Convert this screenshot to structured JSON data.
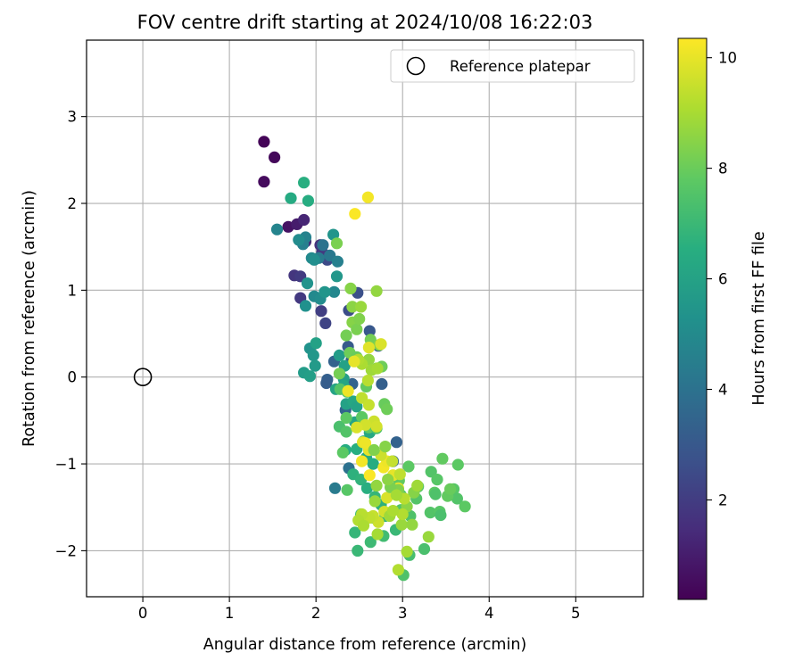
{
  "chart_data": {
    "type": "scatter",
    "title": "FOV centre drift starting at 2024/10/08 16:22:03",
    "xlabel": "Angular distance from reference (arcmin)",
    "ylabel": "Rotation from reference (arcmin)",
    "xlim": [
      -0.65,
      5.78
    ],
    "ylim": [
      -2.53,
      3.88
    ],
    "xticks": [
      0,
      1,
      2,
      3,
      4,
      5
    ],
    "yticks": [
      -2,
      -1,
      0,
      1,
      2,
      3
    ],
    "grid": true,
    "legend": {
      "position": "top-right",
      "entries": [
        "Reference platepar"
      ]
    },
    "reference": {
      "x": 0,
      "y": 0
    },
    "colorbar": {
      "label": "Hours from first FF file",
      "range": [
        0.2,
        10.35
      ],
      "ticks": [
        2,
        4,
        6,
        8,
        10
      ],
      "colormap": "viridis"
    },
    "series": [
      {
        "points": [
          [
            1.4,
            2.71,
            0.3
          ],
          [
            1.52,
            2.53,
            0.4
          ],
          [
            1.4,
            2.25,
            0.5
          ],
          [
            1.68,
            1.73,
            0.7
          ],
          [
            1.78,
            1.76,
            1.0
          ],
          [
            1.86,
            1.81,
            1.3
          ],
          [
            1.88,
            1.56,
            1.5
          ],
          [
            2.05,
            1.52,
            1.7
          ],
          [
            2.07,
            1.44,
            1.9
          ],
          [
            1.75,
            1.17,
            1.8
          ],
          [
            1.82,
            1.16,
            2.0
          ],
          [
            1.82,
            0.91,
            1.9
          ],
          [
            2.06,
            0.76,
            2.1
          ],
          [
            2.11,
            0.62,
            2.3
          ],
          [
            2.13,
            1.35,
            2.5
          ],
          [
            2.48,
            0.97,
            2.7
          ],
          [
            2.38,
            0.77,
            2.6
          ],
          [
            2.62,
            0.53,
            3.0
          ],
          [
            2.37,
            0.35,
            3.1
          ],
          [
            2.72,
            0.36,
            3.2
          ],
          [
            2.41,
            0.2,
            3.3
          ],
          [
            2.21,
            0.18,
            3.4
          ],
          [
            2.13,
            -0.03,
            3.3
          ],
          [
            2.12,
            -0.07,
            3.2
          ],
          [
            2.42,
            -0.08,
            3.4
          ],
          [
            2.34,
            -0.38,
            3.5
          ],
          [
            2.76,
            -0.08,
            3.3
          ],
          [
            2.53,
            -0.47,
            3.6
          ],
          [
            2.93,
            -0.75,
            3.4
          ],
          [
            2.89,
            -0.97,
            3.6
          ],
          [
            2.38,
            -1.05,
            4.0
          ],
          [
            2.22,
            -1.28,
            4.4
          ],
          [
            2.08,
            1.52,
            4.1
          ],
          [
            2.16,
            1.4,
            4.3
          ],
          [
            2.03,
            1.37,
            4.4
          ],
          [
            2.25,
            1.33,
            4.6
          ],
          [
            1.88,
            1.61,
            4.7
          ],
          [
            1.85,
            1.53,
            4.6
          ],
          [
            1.55,
            1.7,
            4.8
          ],
          [
            1.95,
            1.37,
            5.0
          ],
          [
            1.8,
            1.58,
            5.1
          ],
          [
            1.98,
            1.35,
            5.2
          ],
          [
            2.21,
            0.98,
            4.9
          ],
          [
            1.98,
            0.93,
            5.0
          ],
          [
            2.05,
            0.9,
            5.1
          ],
          [
            1.88,
            0.82,
            5.3
          ],
          [
            1.9,
            1.08,
            5.4
          ],
          [
            2.1,
            0.98,
            5.5
          ],
          [
            2.24,
            1.16,
            5.6
          ],
          [
            2.2,
            1.64,
            5.5
          ],
          [
            1.93,
            0.33,
            5.4
          ],
          [
            1.97,
            0.25,
            5.6
          ],
          [
            1.99,
            0.13,
            5.7
          ],
          [
            1.86,
            0.05,
            5.8
          ],
          [
            1.93,
            0.01,
            5.9
          ],
          [
            2.0,
            0.39,
            6.0
          ],
          [
            2.32,
            -0.02,
            5.9
          ],
          [
            2.27,
            0.25,
            5.8
          ],
          [
            2.33,
            0.13,
            6.0
          ],
          [
            2.23,
            -0.14,
            6.1
          ],
          [
            2.32,
            -0.1,
            6.2
          ],
          [
            2.35,
            -0.31,
            6.0
          ],
          [
            2.43,
            -0.28,
            6.3
          ],
          [
            2.47,
            -0.34,
            6.1
          ],
          [
            2.45,
            -0.52,
            6.2
          ],
          [
            2.55,
            -0.74,
            6.4
          ],
          [
            2.62,
            -0.64,
            6.3
          ],
          [
            2.34,
            -0.84,
            6.5
          ],
          [
            2.47,
            -0.83,
            6.6
          ],
          [
            2.58,
            -0.93,
            6.4
          ],
          [
            2.66,
            -1.0,
            6.5
          ],
          [
            2.43,
            -1.12,
            6.7
          ],
          [
            2.52,
            -1.18,
            6.8
          ],
          [
            2.59,
            -1.28,
            6.6
          ],
          [
            2.68,
            -1.38,
            6.9
          ],
          [
            2.75,
            -1.47,
            6.7
          ],
          [
            2.8,
            -1.6,
            6.8
          ],
          [
            2.92,
            -1.76,
            7.0
          ],
          [
            2.45,
            -1.79,
            6.9
          ],
          [
            2.48,
            -2.0,
            7.0
          ],
          [
            2.63,
            -1.9,
            7.1
          ],
          [
            2.78,
            -1.83,
            7.2
          ],
          [
            2.52,
            -1.58,
            7.1
          ],
          [
            2.66,
            -1.62,
            7.2
          ],
          [
            1.71,
            2.06,
            6.4
          ],
          [
            1.86,
            2.24,
            6.6
          ],
          [
            1.91,
            2.03,
            6.5
          ],
          [
            3.08,
            -2.05,
            7.3
          ],
          [
            3.25,
            -1.98,
            7.4
          ],
          [
            3.01,
            -2.28,
            7.5
          ],
          [
            3.32,
            -1.56,
            7.6
          ],
          [
            3.43,
            -1.55,
            7.7
          ],
          [
            3.37,
            -1.33,
            7.8
          ],
          [
            3.33,
            -1.09,
            7.6
          ],
          [
            3.4,
            -1.18,
            7.7
          ],
          [
            3.46,
            -0.94,
            7.9
          ],
          [
            3.64,
            -1.01,
            7.8
          ],
          [
            3.59,
            -1.29,
            7.7
          ],
          [
            3.63,
            -1.4,
            7.6
          ],
          [
            3.72,
            -1.49,
            7.8
          ],
          [
            3.52,
            -1.37,
            7.9
          ],
          [
            3.55,
            -1.29,
            8.0
          ],
          [
            3.38,
            -1.35,
            7.5
          ],
          [
            3.44,
            -1.59,
            7.4
          ],
          [
            3.09,
            -1.6,
            7.5
          ],
          [
            3.16,
            -1.4,
            7.6
          ],
          [
            3.18,
            -1.26,
            7.7
          ],
          [
            3.07,
            -1.03,
            7.8
          ],
          [
            2.96,
            -1.19,
            7.9
          ],
          [
            2.98,
            -1.36,
            7.5
          ],
          [
            2.98,
            -1.53,
            7.6
          ],
          [
            2.36,
            -1.3,
            7.7
          ],
          [
            2.31,
            -0.87,
            7.8
          ],
          [
            2.27,
            -0.57,
            7.4
          ],
          [
            2.35,
            -0.63,
            7.6
          ],
          [
            2.35,
            -0.47,
            7.8
          ],
          [
            2.61,
            -0.58,
            7.9
          ],
          [
            2.7,
            -0.59,
            7.5
          ],
          [
            2.28,
            -0.14,
            7.6
          ],
          [
            2.36,
            -0.17,
            7.7
          ],
          [
            2.53,
            -0.46,
            7.8
          ],
          [
            2.58,
            -0.11,
            7.9
          ],
          [
            2.79,
            -0.31,
            8.0
          ],
          [
            2.82,
            -0.37,
            8.1
          ],
          [
            2.39,
            0.28,
            8.1
          ],
          [
            2.47,
            0.23,
            8.0
          ],
          [
            2.63,
            0.43,
            8.2
          ],
          [
            2.7,
            0.1,
            8.3
          ],
          [
            2.76,
            0.12,
            8.1
          ],
          [
            2.73,
            0.37,
            8.4
          ],
          [
            2.42,
            0.63,
            8.5
          ],
          [
            2.35,
            0.48,
            8.2
          ],
          [
            2.47,
            0.55,
            8.3
          ],
          [
            2.5,
            0.67,
            8.4
          ],
          [
            2.27,
            0.04,
            8.2
          ],
          [
            2.24,
            1.54,
            8.3
          ],
          [
            2.4,
            1.02,
            8.5
          ],
          [
            2.42,
            0.81,
            8.6
          ],
          [
            2.7,
            0.99,
            8.7
          ],
          [
            2.52,
            0.81,
            8.8
          ],
          [
            2.61,
            0.2,
            8.7
          ],
          [
            2.64,
            0.08,
            8.9
          ],
          [
            2.71,
            0.1,
            9.0
          ],
          [
            2.53,
            0.15,
            9.1
          ],
          [
            2.49,
            0.2,
            9.2
          ],
          [
            2.6,
            -0.04,
            9.3
          ],
          [
            2.53,
            -0.24,
            9.4
          ],
          [
            2.61,
            -0.32,
            9.5
          ],
          [
            2.67,
            -0.51,
            9.6
          ],
          [
            2.57,
            -0.55,
            9.7
          ],
          [
            2.47,
            -0.58,
            9.8
          ],
          [
            2.54,
            -0.75,
            9.9
          ],
          [
            2.61,
            -0.84,
            10.0
          ],
          [
            2.57,
            -0.76,
            10.1
          ],
          [
            2.53,
            -0.97,
            10.2
          ],
          [
            2.62,
            -1.13,
            10.3
          ],
          [
            2.78,
            -1.04,
            10.2
          ],
          [
            2.82,
            -0.97,
            10.1
          ],
          [
            2.89,
            -1.13,
            10.0
          ],
          [
            2.95,
            -1.28,
            9.9
          ],
          [
            2.82,
            -1.39,
            9.8
          ],
          [
            2.79,
            -1.55,
            9.7
          ],
          [
            2.72,
            -1.67,
            9.6
          ],
          [
            2.66,
            -1.6,
            9.5
          ],
          [
            2.62,
            -1.62,
            9.4
          ],
          [
            2.53,
            -1.58,
            9.3
          ],
          [
            2.49,
            -1.65,
            9.2
          ],
          [
            2.55,
            -1.71,
            9.1
          ],
          [
            2.71,
            -1.81,
            9.0
          ],
          [
            2.85,
            -1.6,
            8.9
          ],
          [
            2.99,
            -1.7,
            8.8
          ],
          [
            3.11,
            -1.7,
            8.7
          ],
          [
            3.05,
            -1.49,
            8.6
          ],
          [
            3.13,
            -1.33,
            8.5
          ],
          [
            2.95,
            -1.3,
            8.4
          ],
          [
            2.86,
            -1.27,
            8.3
          ],
          [
            3.3,
            -1.84,
            8.8
          ],
          [
            3.05,
            -2.01,
            9.0
          ],
          [
            2.95,
            -2.22,
            9.2
          ],
          [
            2.45,
            1.88,
            10.3
          ],
          [
            2.6,
            2.07,
            10.2
          ],
          [
            2.37,
            -0.16,
            10.1
          ],
          [
            2.44,
            0.18,
            10.0
          ],
          [
            2.61,
            0.34,
            9.9
          ],
          [
            2.75,
            0.38,
            9.8
          ],
          [
            2.7,
            -0.57,
            9.7
          ],
          [
            2.75,
            -0.9,
            9.6
          ],
          [
            2.88,
            -0.97,
            9.5
          ],
          [
            2.97,
            -1.12,
            9.4
          ],
          [
            3.02,
            -1.4,
            9.3
          ],
          [
            3.0,
            -1.58,
            9.2
          ],
          [
            2.89,
            -1.54,
            9.1
          ],
          [
            2.93,
            -1.36,
            9.0
          ],
          [
            3.17,
            -1.25,
            8.9
          ],
          [
            2.68,
            -1.43,
            8.8
          ],
          [
            2.7,
            -1.25,
            8.7
          ],
          [
            2.83,
            -1.18,
            8.6
          ],
          [
            2.8,
            -0.8,
            8.5
          ],
          [
            2.67,
            -0.84,
            8.4
          ]
        ]
      }
    ]
  }
}
